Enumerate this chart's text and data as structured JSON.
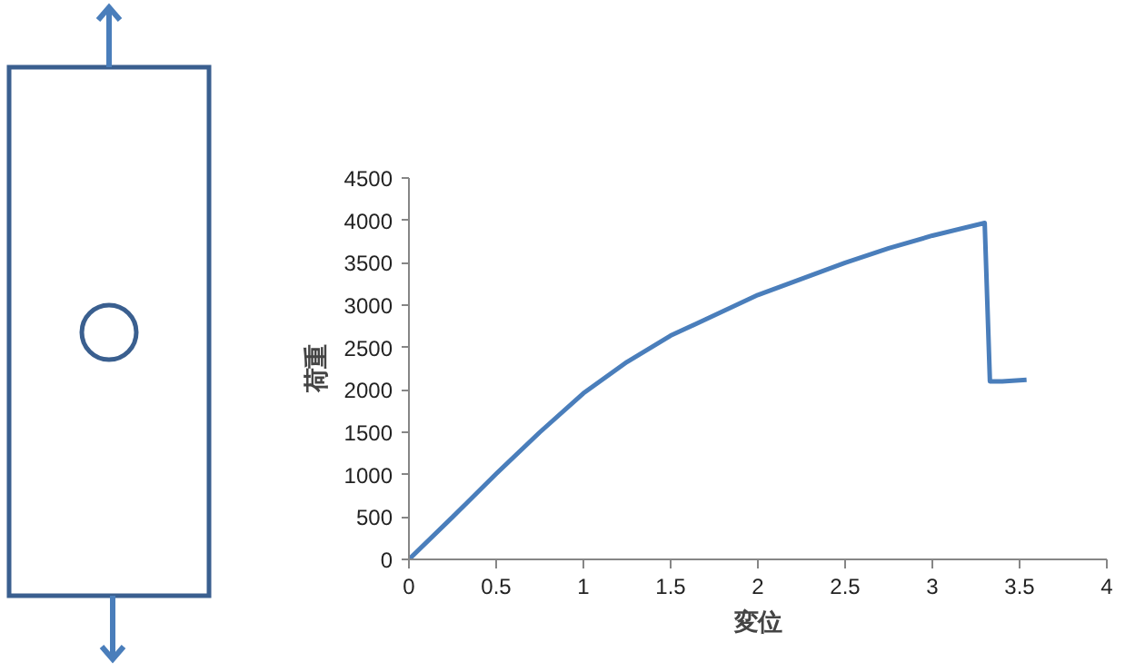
{
  "chart_data": {
    "type": "line",
    "xlabel": "変位",
    "ylabel": "荷重",
    "x": [
      0,
      0.25,
      0.5,
      0.75,
      1,
      1.25,
      1.5,
      1.75,
      2,
      2.25,
      2.5,
      2.75,
      3,
      3.3,
      3.33,
      3.4,
      3.54
    ],
    "series": [
      {
        "color": "#4a7ebb",
        "values": [
          0,
          500,
          1010,
          1500,
          1960,
          2330,
          2640,
          2880,
          3120,
          3310,
          3500,
          3670,
          3820,
          3970,
          2100,
          2100,
          2120
        ]
      }
    ],
    "xlim": [
      0,
      4
    ],
    "xticks": [
      0,
      0.5,
      1,
      1.5,
      2,
      2.5,
      3,
      3.5,
      4
    ],
    "ylim": [
      0,
      4500
    ],
    "yticks": [
      0,
      500,
      1000,
      1500,
      2000,
      2500,
      3000,
      3500,
      4000,
      4500
    ],
    "grid": false,
    "marker": "none",
    "line_style": "solid"
  }
}
